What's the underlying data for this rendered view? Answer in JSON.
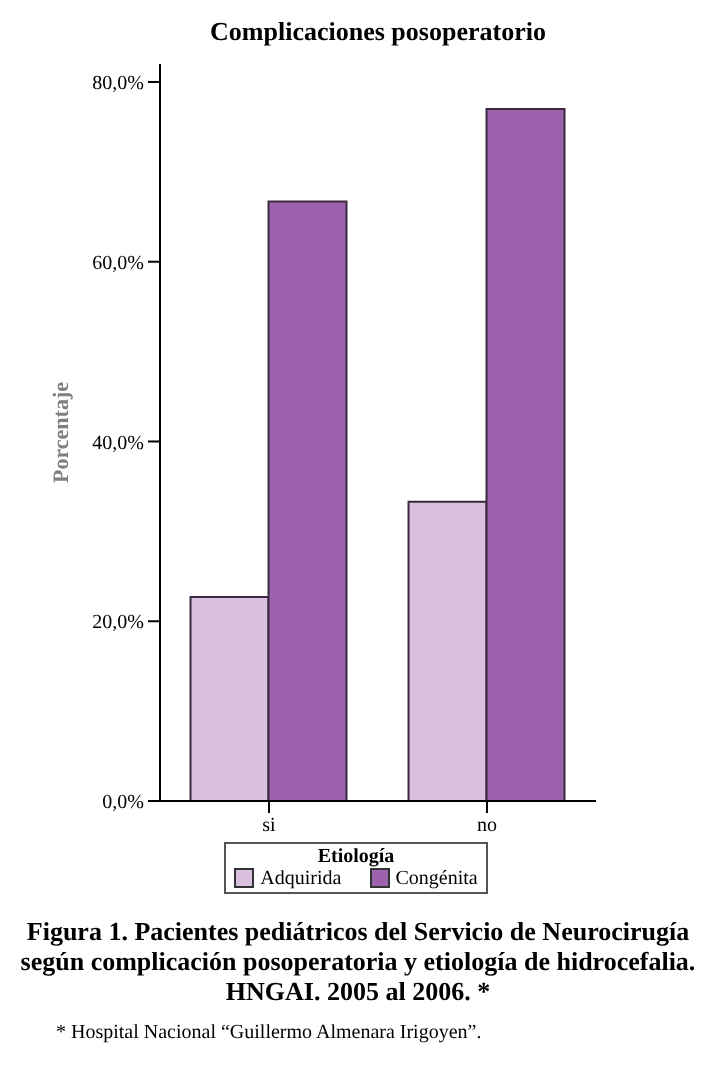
{
  "chart_data": {
    "type": "bar",
    "title": "Complicaciones posoperatorio",
    "ylabel": "Porcentaje",
    "legend_title": "Etiología",
    "categories": [
      "si",
      "no"
    ],
    "series": [
      {
        "name": "Adquirida",
        "color": "#d9c0df",
        "values": [
          22.7,
          33.3
        ]
      },
      {
        "name": "Congénita",
        "color": "#9c62ae",
        "values": [
          66.7,
          77.0
        ]
      }
    ],
    "ylim": [
      0,
      82
    ],
    "yticks": [
      {
        "value": 0,
        "label": "0,0%"
      },
      {
        "value": 20,
        "label": "20,0%"
      },
      {
        "value": 40,
        "label": "40,0%"
      },
      {
        "value": 60,
        "label": "60,0%"
      },
      {
        "value": 80,
        "label": "80,0%"
      }
    ],
    "grid": false,
    "legend": "bottom",
    "annotations": [
      "Figura 1. Pacientes pediátricos del Servicio de Neurocirugía según complicación posoperatoria y etiología de hidrocefalia. HNGAI. 2005 al 2006. *",
      "* Hospital Nacional “Guillermo Almenara Irigoyen”."
    ]
  }
}
